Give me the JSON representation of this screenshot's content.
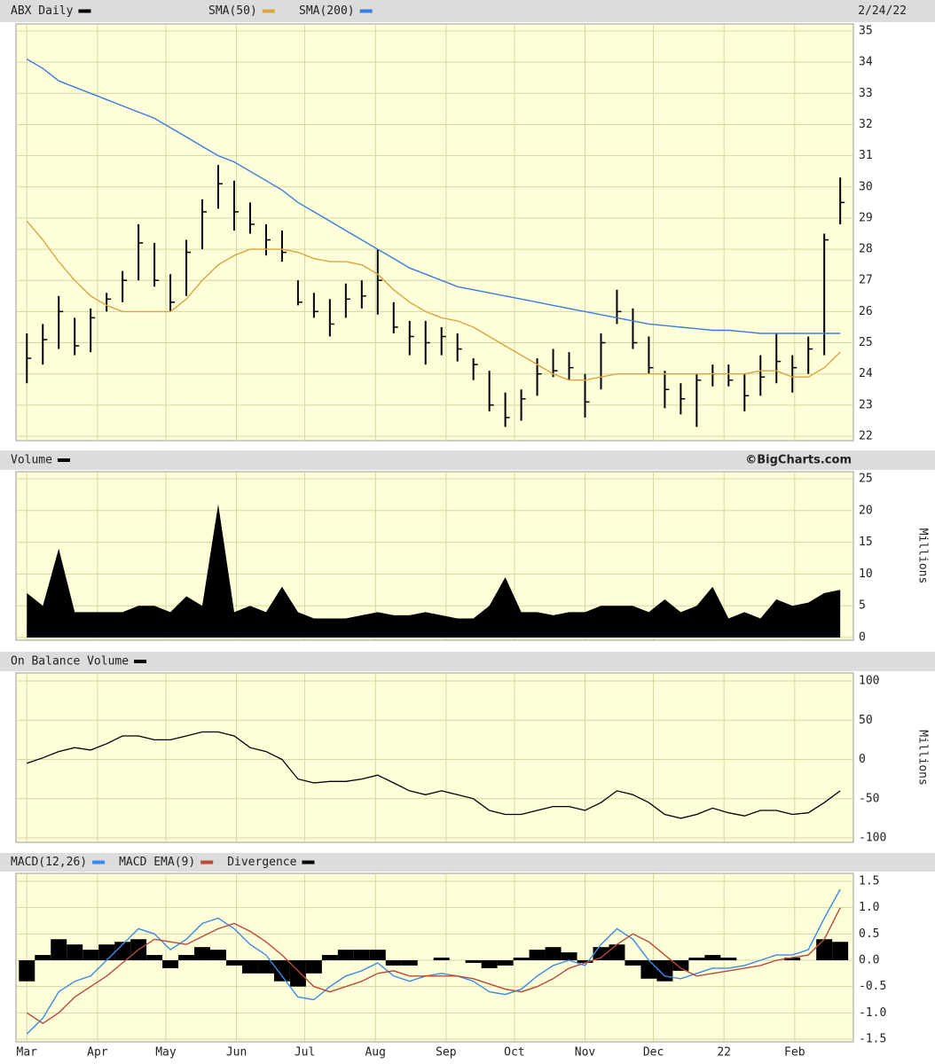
{
  "chart_data": {
    "x": [
      0,
      7,
      14,
      21,
      28,
      35,
      42,
      49,
      56,
      63,
      70,
      77,
      84,
      91,
      98,
      105,
      112,
      119,
      126,
      133,
      140,
      147,
      154,
      161,
      168,
      175,
      182,
      189,
      196,
      203,
      210,
      217,
      224,
      231,
      238,
      245,
      252,
      259,
      266,
      273,
      280,
      287,
      294,
      301,
      308,
      315,
      322,
      329,
      336,
      343,
      350,
      357
    ],
    "xlim": [
      -4,
      362
    ],
    "xticks": [
      {
        "value": 0,
        "label": "Mar"
      },
      {
        "value": 31,
        "label": "Apr"
      },
      {
        "value": 61,
        "label": "May"
      },
      {
        "value": 92,
        "label": "Jun"
      },
      {
        "value": 122,
        "label": "Jul"
      },
      {
        "value": 153,
        "label": "Aug"
      },
      {
        "value": 184,
        "label": "Sep"
      },
      {
        "value": 214,
        "label": "Oct"
      },
      {
        "value": 245,
        "label": "Nov"
      },
      {
        "value": 275,
        "label": "Dec"
      },
      {
        "value": 306,
        "label": "22"
      },
      {
        "value": 337,
        "label": "Feb"
      }
    ],
    "grid": true,
    "panels": [
      {
        "type": "ohlc",
        "date_label": "2/24/22",
        "ylim": [
          22,
          35
        ],
        "yticks": [
          22,
          23,
          24,
          25,
          26,
          27,
          28,
          29,
          30,
          31,
          32,
          33,
          34,
          35
        ],
        "series": [
          {
            "name": "ABX Daily",
            "color": "#000000",
            "high": [
              25.3,
              25.6,
              26.5,
              25.8,
              26.1,
              26.6,
              27.3,
              28.8,
              28.2,
              27.2,
              28.3,
              29.6,
              30.7,
              30.2,
              29.5,
              28.8,
              28.6,
              27.0,
              26.6,
              26.4,
              26.9,
              27.0,
              28.0,
              26.3,
              25.7,
              25.7,
              25.5,
              25.3,
              24.5,
              24.1,
              23.4,
              23.5,
              24.5,
              24.8,
              24.7,
              24.0,
              25.3,
              26.7,
              26.1,
              25.2,
              24.1,
              23.7,
              24.0,
              24.3,
              24.3,
              24.0,
              24.6,
              25.3,
              24.6,
              25.2,
              28.5,
              30.3
            ],
            "low": [
              23.7,
              24.3,
              24.8,
              24.6,
              24.7,
              26.0,
              26.3,
              27.0,
              26.8,
              26.0,
              26.5,
              28.0,
              29.3,
              28.6,
              28.5,
              27.8,
              27.6,
              26.2,
              25.8,
              25.2,
              25.8,
              26.1,
              25.9,
              25.3,
              24.6,
              24.3,
              24.6,
              24.4,
              23.8,
              22.8,
              22.3,
              22.5,
              23.3,
              23.9,
              23.8,
              22.6,
              23.5,
              25.6,
              24.8,
              24.0,
              22.9,
              22.7,
              22.3,
              23.6,
              23.6,
              22.8,
              23.3,
              23.7,
              23.4,
              24.0,
              24.6,
              28.8
            ],
            "close": [
              24.5,
              25.1,
              26.0,
              24.9,
              25.8,
              26.4,
              27.0,
              28.2,
              27.0,
              26.3,
              27.9,
              29.2,
              30.1,
              29.2,
              28.8,
              28.3,
              27.9,
              26.3,
              26.0,
              25.6,
              26.4,
              26.5,
              27.0,
              25.5,
              25.2,
              25.0,
              25.2,
              24.8,
              24.3,
              23.0,
              22.6,
              23.2,
              24.0,
              24.1,
              24.2,
              23.1,
              25.0,
              26.0,
              25.0,
              24.2,
              23.5,
              23.2,
              23.8,
              24.0,
              23.8,
              23.3,
              23.9,
              24.4,
              24.2,
              24.8,
              28.3,
              29.5
            ]
          },
          {
            "name": "SMA(50)",
            "color": "#d9a441",
            "values": [
              28.9,
              28.3,
              27.6,
              27.0,
              26.5,
              26.2,
              26.0,
              26.0,
              26.0,
              26.0,
              26.4,
              27.0,
              27.5,
              27.8,
              28.0,
              28.0,
              28.0,
              27.9,
              27.7,
              27.6,
              27.6,
              27.5,
              27.2,
              26.7,
              26.3,
              26.0,
              25.8,
              25.7,
              25.5,
              25.2,
              24.9,
              24.6,
              24.3,
              24.0,
              23.8,
              23.8,
              23.9,
              24.0,
              24.0,
              24.0,
              24.0,
              24.0,
              24.0,
              24.0,
              24.0,
              24.0,
              24.1,
              24.1,
              23.9,
              23.9,
              24.2,
              24.7
            ]
          },
          {
            "name": "SMA(200)",
            "color": "#3a7de0",
            "values": [
              34.1,
              33.8,
              33.4,
              33.2,
              33.0,
              32.8,
              32.6,
              32.4,
              32.2,
              31.9,
              31.6,
              31.3,
              31.0,
              30.8,
              30.5,
              30.2,
              29.9,
              29.5,
              29.2,
              28.9,
              28.6,
              28.3,
              28.0,
              27.7,
              27.4,
              27.2,
              27.0,
              26.8,
              26.7,
              26.6,
              26.5,
              26.4,
              26.3,
              26.2,
              26.1,
              26.0,
              25.9,
              25.8,
              25.7,
              25.6,
              25.55,
              25.5,
              25.45,
              25.4,
              25.4,
              25.35,
              25.3,
              25.3,
              25.3,
              25.3,
              25.3,
              25.3
            ]
          }
        ]
      },
      {
        "type": "area",
        "credit": "©BigCharts.com",
        "y_label": "Millions",
        "ylim": [
          0,
          25
        ],
        "yticks": [
          0,
          5,
          10,
          15,
          20,
          25
        ],
        "series": [
          {
            "name": "Volume",
            "color": "#000000",
            "values": [
              7,
              5,
              14,
              4,
              4,
              4,
              4,
              5,
              5,
              4,
              6.5,
              5,
              21,
              4,
              5,
              4,
              8,
              4,
              3,
              3,
              3,
              3.5,
              4,
              3.5,
              3.5,
              4,
              3.5,
              3,
              3,
              5,
              9.5,
              4,
              4,
              3.5,
              4,
              4,
              5,
              5,
              5,
              4,
              6,
              4,
              5,
              8,
              3,
              4,
              3,
              6,
              5,
              5.5,
              7,
              7.5
            ]
          }
        ]
      },
      {
        "type": "line",
        "y_label": "Millions",
        "ylim": [
          -100,
          100
        ],
        "yticks": [
          -100,
          -50,
          0,
          50,
          100
        ],
        "series": [
          {
            "name": "On Balance Volume",
            "color": "#000000",
            "values": [
              -5,
              2,
              10,
              15,
              12,
              20,
              30,
              30,
              25,
              25,
              30,
              35,
              35,
              30,
              15,
              10,
              0,
              -25,
              -30,
              -28,
              -28,
              -25,
              -20,
              -30,
              -40,
              -45,
              -40,
              -45,
              -50,
              -65,
              -70,
              -70,
              -65,
              -60,
              -60,
              -65,
              -55,
              -40,
              -45,
              -55,
              -70,
              -75,
              -70,
              -62,
              -68,
              -72,
              -65,
              -65,
              -70,
              -68,
              -55,
              -40
            ]
          }
        ]
      },
      {
        "type": "macd",
        "ylim": [
          -1.5,
          1.5
        ],
        "yticks": [
          -1.5,
          {
            "value": -1,
            "label": "-1.0"
          },
          -0.5,
          {
            "value": 0,
            "label": "0.0"
          },
          0.5,
          {
            "value": 1,
            "label": "1.0"
          },
          1.5
        ],
        "series": [
          {
            "name": "MACD(12,26)",
            "color": "#3a8be8",
            "values": [
              -1.4,
              -1.1,
              -0.6,
              -0.4,
              -0.3,
              0,
              0.3,
              0.6,
              0.5,
              0.2,
              0.4,
              0.7,
              0.8,
              0.6,
              0.3,
              0.1,
              -0.3,
              -0.7,
              -0.75,
              -0.5,
              -0.3,
              -0.2,
              -0.05,
              -0.3,
              -0.4,
              -0.3,
              -0.25,
              -0.3,
              -0.4,
              -0.6,
              -0.65,
              -0.55,
              -0.3,
              -0.1,
              0,
              -0.1,
              0.3,
              0.6,
              0.4,
              0,
              -0.3,
              -0.35,
              -0.25,
              -0.15,
              -0.15,
              -0.1,
              0,
              0.1,
              0.1,
              0.2,
              0.8,
              1.35
            ]
          },
          {
            "name": "MACD EMA(9)",
            "color": "#b84a3a",
            "values": [
              -1.0,
              -1.2,
              -1.0,
              -0.7,
              -0.5,
              -0.3,
              -0.05,
              0.2,
              0.4,
              0.35,
              0.3,
              0.45,
              0.6,
              0.7,
              0.55,
              0.35,
              0.1,
              -0.2,
              -0.5,
              -0.6,
              -0.5,
              -0.4,
              -0.25,
              -0.2,
              -0.3,
              -0.3,
              -0.3,
              -0.3,
              -0.35,
              -0.45,
              -0.55,
              -0.6,
              -0.5,
              -0.35,
              -0.15,
              -0.05,
              0.05,
              0.3,
              0.5,
              0.35,
              0.1,
              -0.15,
              -0.3,
              -0.25,
              -0.2,
              -0.15,
              -0.1,
              0,
              0.05,
              0.1,
              0.4,
              1.0
            ]
          },
          {
            "name": "Divergence",
            "color": "#000000",
            "values": [
              -0.4,
              0.1,
              0.4,
              0.3,
              0.2,
              0.3,
              0.35,
              0.4,
              0.1,
              -0.15,
              0.1,
              0.25,
              0.2,
              -0.1,
              -0.25,
              -0.25,
              -0.4,
              -0.5,
              -0.25,
              0.1,
              0.2,
              0.2,
              0.2,
              -0.1,
              -0.1,
              0,
              0.05,
              0,
              -0.05,
              -0.15,
              -0.1,
              0.05,
              0.2,
              0.25,
              0.15,
              -0.05,
              0.25,
              0.3,
              -0.1,
              -0.35,
              -0.4,
              -0.2,
              0.05,
              0.1,
              0.05,
              0,
              0,
              0,
              0.05,
              0,
              0.4,
              0.35
            ]
          }
        ]
      }
    ]
  }
}
